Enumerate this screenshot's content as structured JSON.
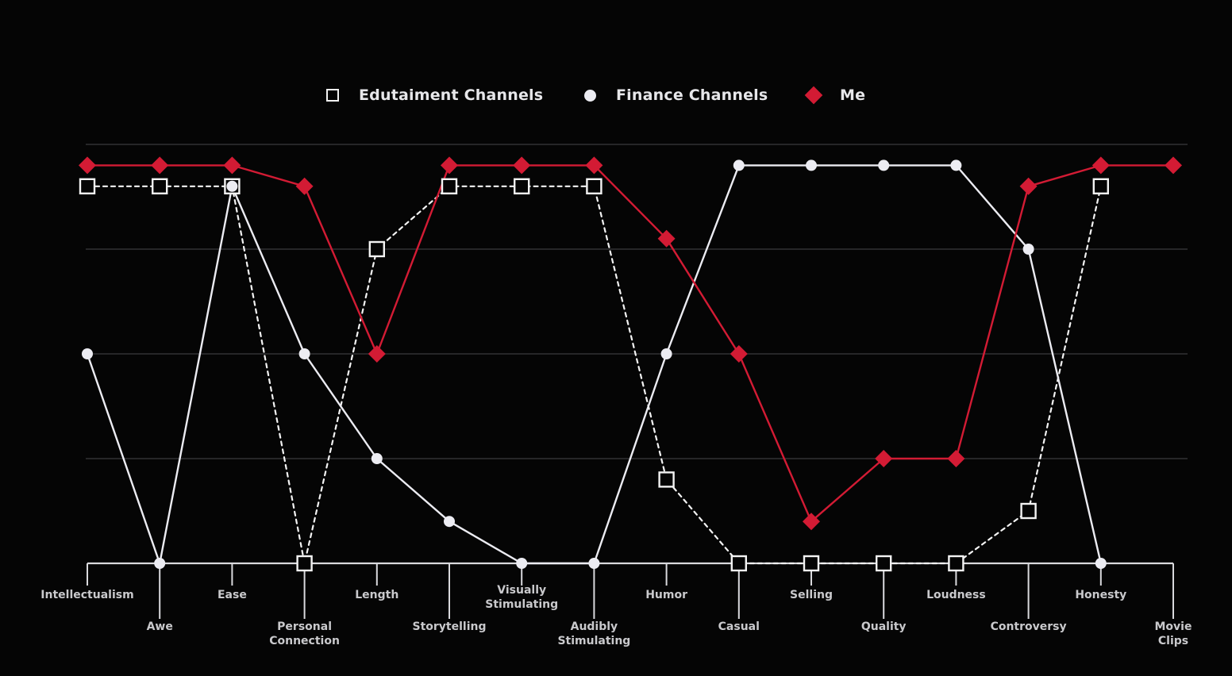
{
  "legend": [
    {
      "label": "Edutaiment Channels",
      "marker": "square-outline",
      "color": "#f3f3f3"
    },
    {
      "label": "Finance Channels",
      "marker": "circle",
      "color": "#ececf2"
    },
    {
      "label": "Me",
      "marker": "diamond",
      "color": "#d31b34"
    }
  ],
  "chart_data": {
    "type": "line",
    "categories": [
      "Intellectualism",
      "Awe",
      "Ease",
      "Personal Connection",
      "Length",
      "Storytelling",
      "Visually Stimulating",
      "Audibly Stimulating",
      "Humor",
      "Casual",
      "Selling",
      "Quality",
      "Loudness",
      "Controversy",
      "Honesty",
      "Movie Clips"
    ],
    "ylim": [
      0,
      4
    ],
    "grid": true,
    "legend_position": "top-center",
    "series": [
      {
        "name": "Edutaiment Channels",
        "marker": "square-outline",
        "line": "dotted",
        "color": "#f3f3f3",
        "values": [
          3.6,
          3.6,
          3.6,
          0.0,
          3.0,
          3.6,
          3.6,
          3.6,
          0.8,
          0.0,
          0.0,
          0.0,
          0.0,
          0.5,
          3.6,
          null
        ]
      },
      {
        "name": "Finance Channels",
        "marker": "circle",
        "line": "solid",
        "color": "#ececf2",
        "values": [
          2.0,
          0.0,
          3.6,
          2.0,
          1.0,
          0.4,
          0.0,
          0.0,
          2.0,
          3.8,
          3.8,
          3.8,
          3.8,
          3.0,
          0.0,
          null
        ]
      },
      {
        "name": "Me",
        "marker": "diamond",
        "line": "solid",
        "color": "#d31b34",
        "values": [
          3.8,
          3.8,
          3.8,
          3.6,
          2.0,
          3.8,
          3.8,
          3.8,
          3.1,
          2.0,
          0.4,
          1.0,
          1.0,
          3.6,
          3.8,
          3.8
        ]
      }
    ]
  }
}
